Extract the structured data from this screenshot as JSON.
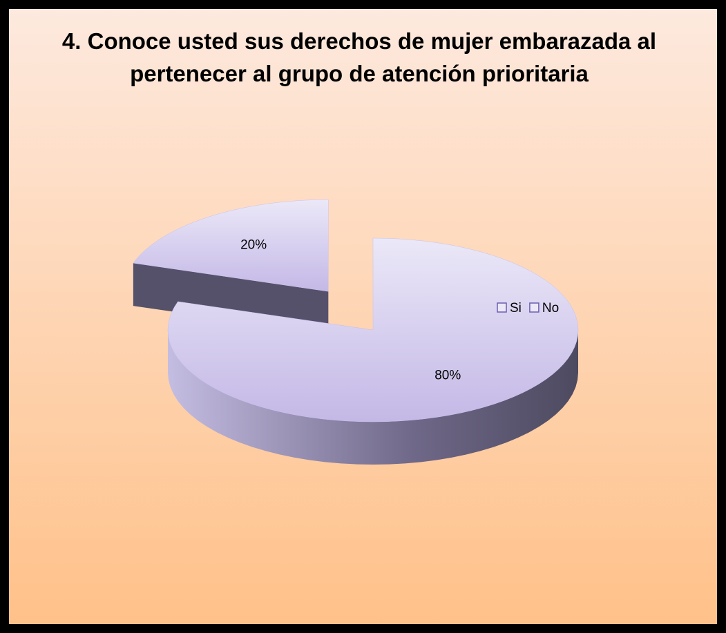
{
  "chart_data": {
    "type": "pie",
    "title": "4. Conoce usted sus derechos de mujer embarazada al pertenecer al grupo de atención prioritaria",
    "categories": [
      "Si",
      "No"
    ],
    "values": [
      20,
      80
    ],
    "value_labels": [
      "20%",
      "80%"
    ],
    "color": "#c9c0ec",
    "exploded": [
      true,
      false
    ],
    "legend": "right"
  }
}
